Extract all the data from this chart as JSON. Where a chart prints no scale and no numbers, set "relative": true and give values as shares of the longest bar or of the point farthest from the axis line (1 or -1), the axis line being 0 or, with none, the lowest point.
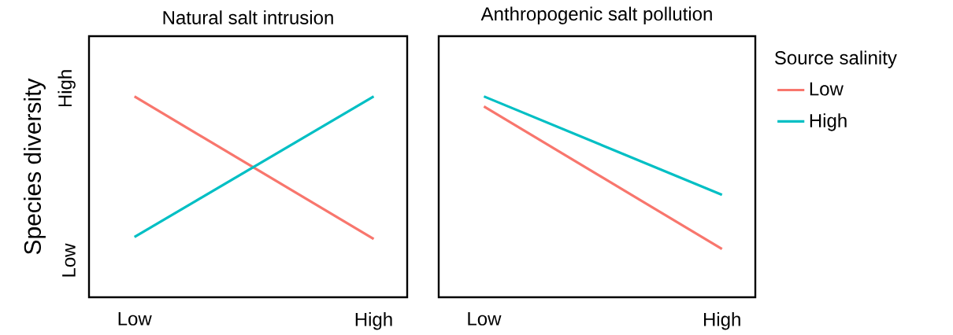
{
  "chart_data": [
    {
      "type": "line",
      "title": "Natural salt intrusion",
      "ylabel": "Species diversity",
      "categories": [
        "Low",
        "High"
      ],
      "relative": true,
      "annotations": [
        "High",
        "Low"
      ],
      "legend": false,
      "series": [
        {
          "color": "#f8766d",
          "values": [
            1,
            0.29
          ]
        },
        {
          "color": "#00bfc4",
          "values": [
            0.3,
            1
          ]
        }
      ]
    },
    {
      "type": "line",
      "title": "Anthropogenic salt pollution",
      "categories": [
        "Low",
        "High"
      ],
      "relative": true,
      "legend": "right",
      "legend_title": "Source salinity",
      "series": [
        {
          "name": "Low",
          "color": "#f8766d",
          "values": [
            0.95,
            0.24
          ]
        },
        {
          "name": "High",
          "color": "#00bfc4",
          "values": [
            1,
            0.51
          ]
        }
      ]
    }
  ]
}
